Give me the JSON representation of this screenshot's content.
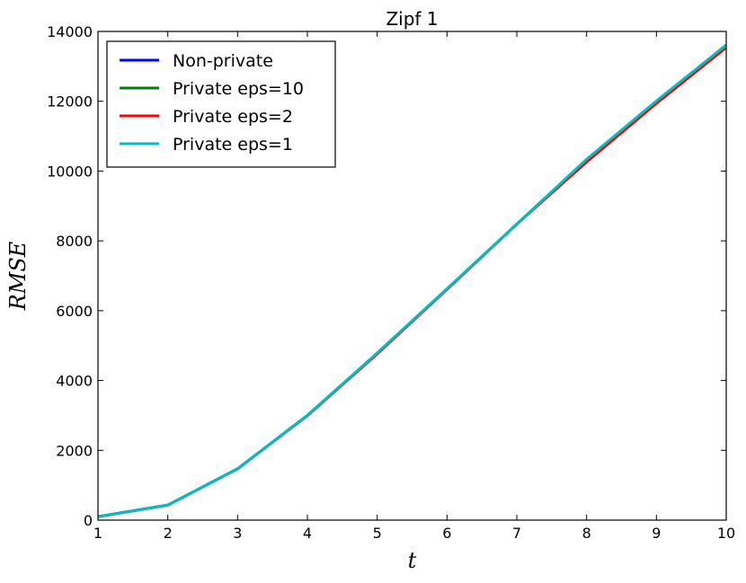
{
  "chart_data": {
    "type": "line",
    "title": "Zipf 1",
    "xlabel": "t",
    "ylabel": "RMSE",
    "xlim": [
      1,
      10
    ],
    "ylim": [
      0,
      14000
    ],
    "xticks": [
      "1",
      "2",
      "3",
      "4",
      "5",
      "6",
      "7",
      "8",
      "9",
      "10"
    ],
    "yticks": [
      "0",
      "2000",
      "4000",
      "6000",
      "8000",
      "10000",
      "12000",
      "14000"
    ],
    "grid": false,
    "legend_position": "top-left",
    "x": [
      1,
      2,
      3,
      4,
      5,
      6,
      7,
      8,
      9,
      10
    ],
    "series": [
      {
        "name": "Non-private",
        "color": "#0000ff",
        "values": [
          100,
          430,
          1470,
          3000,
          4780,
          6620,
          8480,
          10320,
          11990,
          13610
        ]
      },
      {
        "name": "Private eps=10",
        "color": "#008000",
        "values": [
          100,
          430,
          1470,
          3000,
          4780,
          6620,
          8480,
          10320,
          11990,
          13610
        ]
      },
      {
        "name": "Private eps=2",
        "color": "#ff0000",
        "values": [
          100,
          430,
          1470,
          2990,
          4760,
          6610,
          8480,
          10260,
          11940,
          13540
        ]
      },
      {
        "name": "Private eps=1",
        "color": "#00bfbf",
        "values": [
          100,
          430,
          1470,
          3000,
          4790,
          6630,
          8480,
          10340,
          12010,
          13610
        ]
      }
    ]
  }
}
